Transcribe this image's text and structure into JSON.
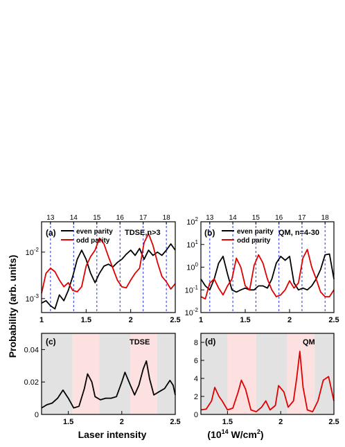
{
  "figure": {
    "ylabel": "Probability (arb. units)",
    "xlabel": "Laser intensity",
    "xlabel_unit": "(10^14 W/cm^2)"
  },
  "chart_data": [
    {
      "panel": "(a)",
      "type": "line",
      "annotation": "TDSE,n>3",
      "yscale": "log",
      "xlim": [
        1.0,
        2.5
      ],
      "ylim": [
        0.0005,
        0.045
      ],
      "x_ticks": [
        "1",
        "1.5",
        "2",
        "2.5"
      ],
      "y_ticks": [
        "10-3",
        "10-2"
      ],
      "top_ticks": [
        "13",
        "14",
        "15",
        "16",
        "17",
        "18"
      ],
      "top_tick_x": [
        1.1,
        1.36,
        1.62,
        1.88,
        2.14,
        2.4
      ],
      "legend": [
        "even parity",
        "odd parity"
      ],
      "x": [
        1.0,
        1.05,
        1.1,
        1.15,
        1.2,
        1.25,
        1.3,
        1.35,
        1.4,
        1.45,
        1.5,
        1.55,
        1.6,
        1.65,
        1.7,
        1.75,
        1.8,
        1.85,
        1.9,
        1.95,
        2.0,
        2.05,
        2.1,
        2.15,
        2.2,
        2.25,
        2.3,
        2.35,
        2.4,
        2.45,
        2.5
      ],
      "series": [
        {
          "name": "even parity",
          "color": "#000000",
          "values": [
            0.0008,
            0.0009,
            0.0007,
            0.0006,
            0.0012,
            0.0009,
            0.0015,
            0.003,
            0.007,
            0.011,
            0.007,
            0.0035,
            0.0022,
            0.0035,
            0.005,
            0.0055,
            0.0048,
            0.006,
            0.007,
            0.009,
            0.011,
            0.0085,
            0.012,
            0.007,
            0.011,
            0.0085,
            0.01,
            0.0085,
            0.011,
            0.015,
            0.011
          ]
        },
        {
          "name": "odd parity",
          "color": "#e00000",
          "values": [
            0.0013,
            0.0035,
            0.0045,
            0.0038,
            0.0025,
            0.0018,
            0.0022,
            0.0015,
            0.0014,
            0.0018,
            0.005,
            0.008,
            0.011,
            0.02,
            0.015,
            0.008,
            0.0045,
            0.0025,
            0.0018,
            0.0017,
            0.0025,
            0.0035,
            0.0045,
            0.016,
            0.025,
            0.014,
            0.006,
            0.003,
            0.0023,
            0.0016,
            0.0021
          ]
        }
      ]
    },
    {
      "panel": "(b)",
      "type": "line",
      "annotation": "QM, n=4-30",
      "yscale": "log",
      "xlim": [
        1.0,
        2.5
      ],
      "ylim": [
        0.01,
        100
      ],
      "x_ticks": [
        "1",
        "1.5",
        "2",
        "2.5"
      ],
      "y_ticks": [
        "10-2",
        "10-1",
        "100",
        "101",
        "102"
      ],
      "top_ticks": [
        "13",
        "14",
        "15",
        "16",
        "17",
        "18"
      ],
      "top_tick_x": [
        1.1,
        1.36,
        1.62,
        1.88,
        2.14,
        2.4
      ],
      "legend": [
        "even parity",
        "odd parity"
      ],
      "x": [
        1.0,
        1.05,
        1.1,
        1.15,
        1.2,
        1.25,
        1.3,
        1.35,
        1.4,
        1.45,
        1.5,
        1.55,
        1.6,
        1.65,
        1.7,
        1.75,
        1.8,
        1.85,
        1.9,
        1.95,
        2.0,
        2.05,
        2.1,
        2.15,
        2.2,
        2.25,
        2.3,
        2.35,
        2.4,
        2.45,
        2.5
      ],
      "series": [
        {
          "name": "even parity",
          "color": "#000000",
          "values": [
            0.3,
            0.15,
            0.1,
            0.3,
            1.5,
            3.0,
            0.5,
            0.1,
            0.08,
            0.1,
            0.12,
            0.1,
            0.1,
            0.15,
            0.15,
            0.12,
            0.3,
            1.5,
            3.0,
            2.0,
            3.0,
            0.2,
            0.1,
            0.12,
            0.1,
            0.15,
            0.3,
            0.8,
            3.5,
            3.8,
            0.3
          ]
        },
        {
          "name": "odd parity",
          "color": "#e00000",
          "values": [
            0.05,
            0.04,
            0.2,
            0.3,
            0.12,
            0.06,
            0.15,
            0.3,
            2.5,
            1.0,
            0.15,
            0.1,
            1.2,
            3.5,
            1.5,
            0.3,
            0.1,
            0.05,
            0.06,
            0.1,
            0.25,
            0.12,
            0.2,
            2.5,
            6.0,
            1.0,
            0.3,
            0.08,
            0.05,
            0.05,
            0.1
          ]
        }
      ]
    },
    {
      "panel": "(c)",
      "type": "line",
      "annotation": "TDSE",
      "yscale": "linear",
      "xlim": [
        1.25,
        2.5
      ],
      "ylim": [
        0,
        0.05
      ],
      "x_ticks": [
        "1.5",
        "2",
        "2.5"
      ],
      "y_ticks": [
        "0",
        "0.02",
        "0.04"
      ],
      "bands": [
        {
          "from": 1.25,
          "to": 1.54,
          "color": "#e2e2e2"
        },
        {
          "from": 1.54,
          "to": 1.79,
          "color": "#fde0e0"
        },
        {
          "from": 1.79,
          "to": 2.08,
          "color": "#e2e2e2"
        },
        {
          "from": 2.08,
          "to": 2.33,
          "color": "#fde0e0"
        },
        {
          "from": 2.33,
          "to": 2.5,
          "color": "#e2e2e2"
        }
      ],
      "x": [
        1.25,
        1.3,
        1.35,
        1.4,
        1.45,
        1.5,
        1.55,
        1.6,
        1.65,
        1.68,
        1.72,
        1.75,
        1.8,
        1.85,
        1.9,
        1.95,
        2.0,
        2.03,
        2.08,
        2.12,
        2.16,
        2.2,
        2.23,
        2.26,
        2.3,
        2.35,
        2.4,
        2.45,
        2.48,
        2.5
      ],
      "series": [
        {
          "name": "",
          "color": "#000000",
          "values": [
            0.004,
            0.006,
            0.007,
            0.01,
            0.015,
            0.01,
            0.004,
            0.005,
            0.016,
            0.025,
            0.02,
            0.011,
            0.009,
            0.01,
            0.01,
            0.011,
            0.02,
            0.026,
            0.018,
            0.012,
            0.018,
            0.028,
            0.033,
            0.022,
            0.012,
            0.014,
            0.016,
            0.021,
            0.018,
            0.012
          ]
        }
      ]
    },
    {
      "panel": "(d)",
      "type": "line",
      "annotation": "QM",
      "yscale": "linear",
      "xlim": [
        1.25,
        2.5
      ],
      "ylim": [
        0,
        9
      ],
      "x_ticks": [
        "1.5",
        "2",
        "2.5"
      ],
      "y_ticks": [
        "0",
        "2",
        "4",
        "6",
        "8"
      ],
      "bands": [
        {
          "from": 1.25,
          "to": 1.5,
          "color": "#e2e2e2"
        },
        {
          "from": 1.5,
          "to": 1.77,
          "color": "#fde0e0"
        },
        {
          "from": 1.77,
          "to": 2.06,
          "color": "#e2e2e2"
        },
        {
          "from": 2.06,
          "to": 2.32,
          "color": "#fde0e0"
        },
        {
          "from": 2.32,
          "to": 2.5,
          "color": "#e2e2e2"
        }
      ],
      "x": [
        1.25,
        1.3,
        1.35,
        1.38,
        1.42,
        1.45,
        1.5,
        1.55,
        1.6,
        1.63,
        1.67,
        1.72,
        1.77,
        1.82,
        1.86,
        1.9,
        1.95,
        1.98,
        2.03,
        2.07,
        2.12,
        2.15,
        2.18,
        2.21,
        2.25,
        2.3,
        2.35,
        2.4,
        2.45,
        2.5
      ],
      "series": [
        {
          "name": "",
          "color": "#e00000",
          "values": [
            0.5,
            0.6,
            1.5,
            3.0,
            2.0,
            1.5,
            0.5,
            0.7,
            2.5,
            3.8,
            2.8,
            0.5,
            0.3,
            0.8,
            1.5,
            0.5,
            1.0,
            3.2,
            2.5,
            0.8,
            1.5,
            4.0,
            7.0,
            3.0,
            0.5,
            0.3,
            1.5,
            3.8,
            4.2,
            1.5
          ]
        }
      ]
    }
  ]
}
